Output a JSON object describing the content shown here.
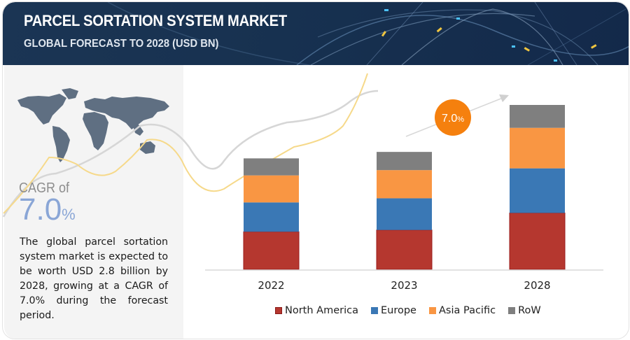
{
  "header": {
    "title": "PARCEL SORTATION SYSTEM MARKET",
    "subtitle": "GLOBAL FORECAST TO 2028 (USD BN)"
  },
  "summary": {
    "cagr_label": "CAGR of",
    "cagr_value": "7.0",
    "cagr_unit": "%",
    "description": "The global parcel sortation system market is expected to be worth USD 2.8 billion by 2028, growing at a CAGR of 7.0% during the forecast period.",
    "badge_value": "7.0",
    "badge_unit": "%"
  },
  "colors": {
    "north_america": "#b5372f",
    "europe": "#3a78b5",
    "asia_pacific": "#f99643",
    "row": "#7f7f7f",
    "badge": "#f5800e",
    "cagr_text": "#8aa6d6"
  },
  "chart_data": {
    "type": "bar",
    "stacked": true,
    "title": "Parcel Sortation System Market, Global Forecast to 2028 (USD BN)",
    "xlabel": "",
    "ylabel": "USD BN",
    "categories": [
      "2022",
      "2023",
      "2028"
    ],
    "series": [
      {
        "name": "North America",
        "values": [
          0.64,
          0.67,
          0.96
        ]
      },
      {
        "name": "Europe",
        "values": [
          0.5,
          0.54,
          0.76
        ]
      },
      {
        "name": "Asia Pacific",
        "values": [
          0.46,
          0.48,
          0.69
        ]
      },
      {
        "name": "RoW",
        "values": [
          0.29,
          0.31,
          0.39
        ]
      }
    ],
    "ylim": [
      0,
      2.8
    ],
    "grid": false,
    "legend_position": "bottom",
    "annotations": [
      "CAGR 7.0%"
    ]
  }
}
